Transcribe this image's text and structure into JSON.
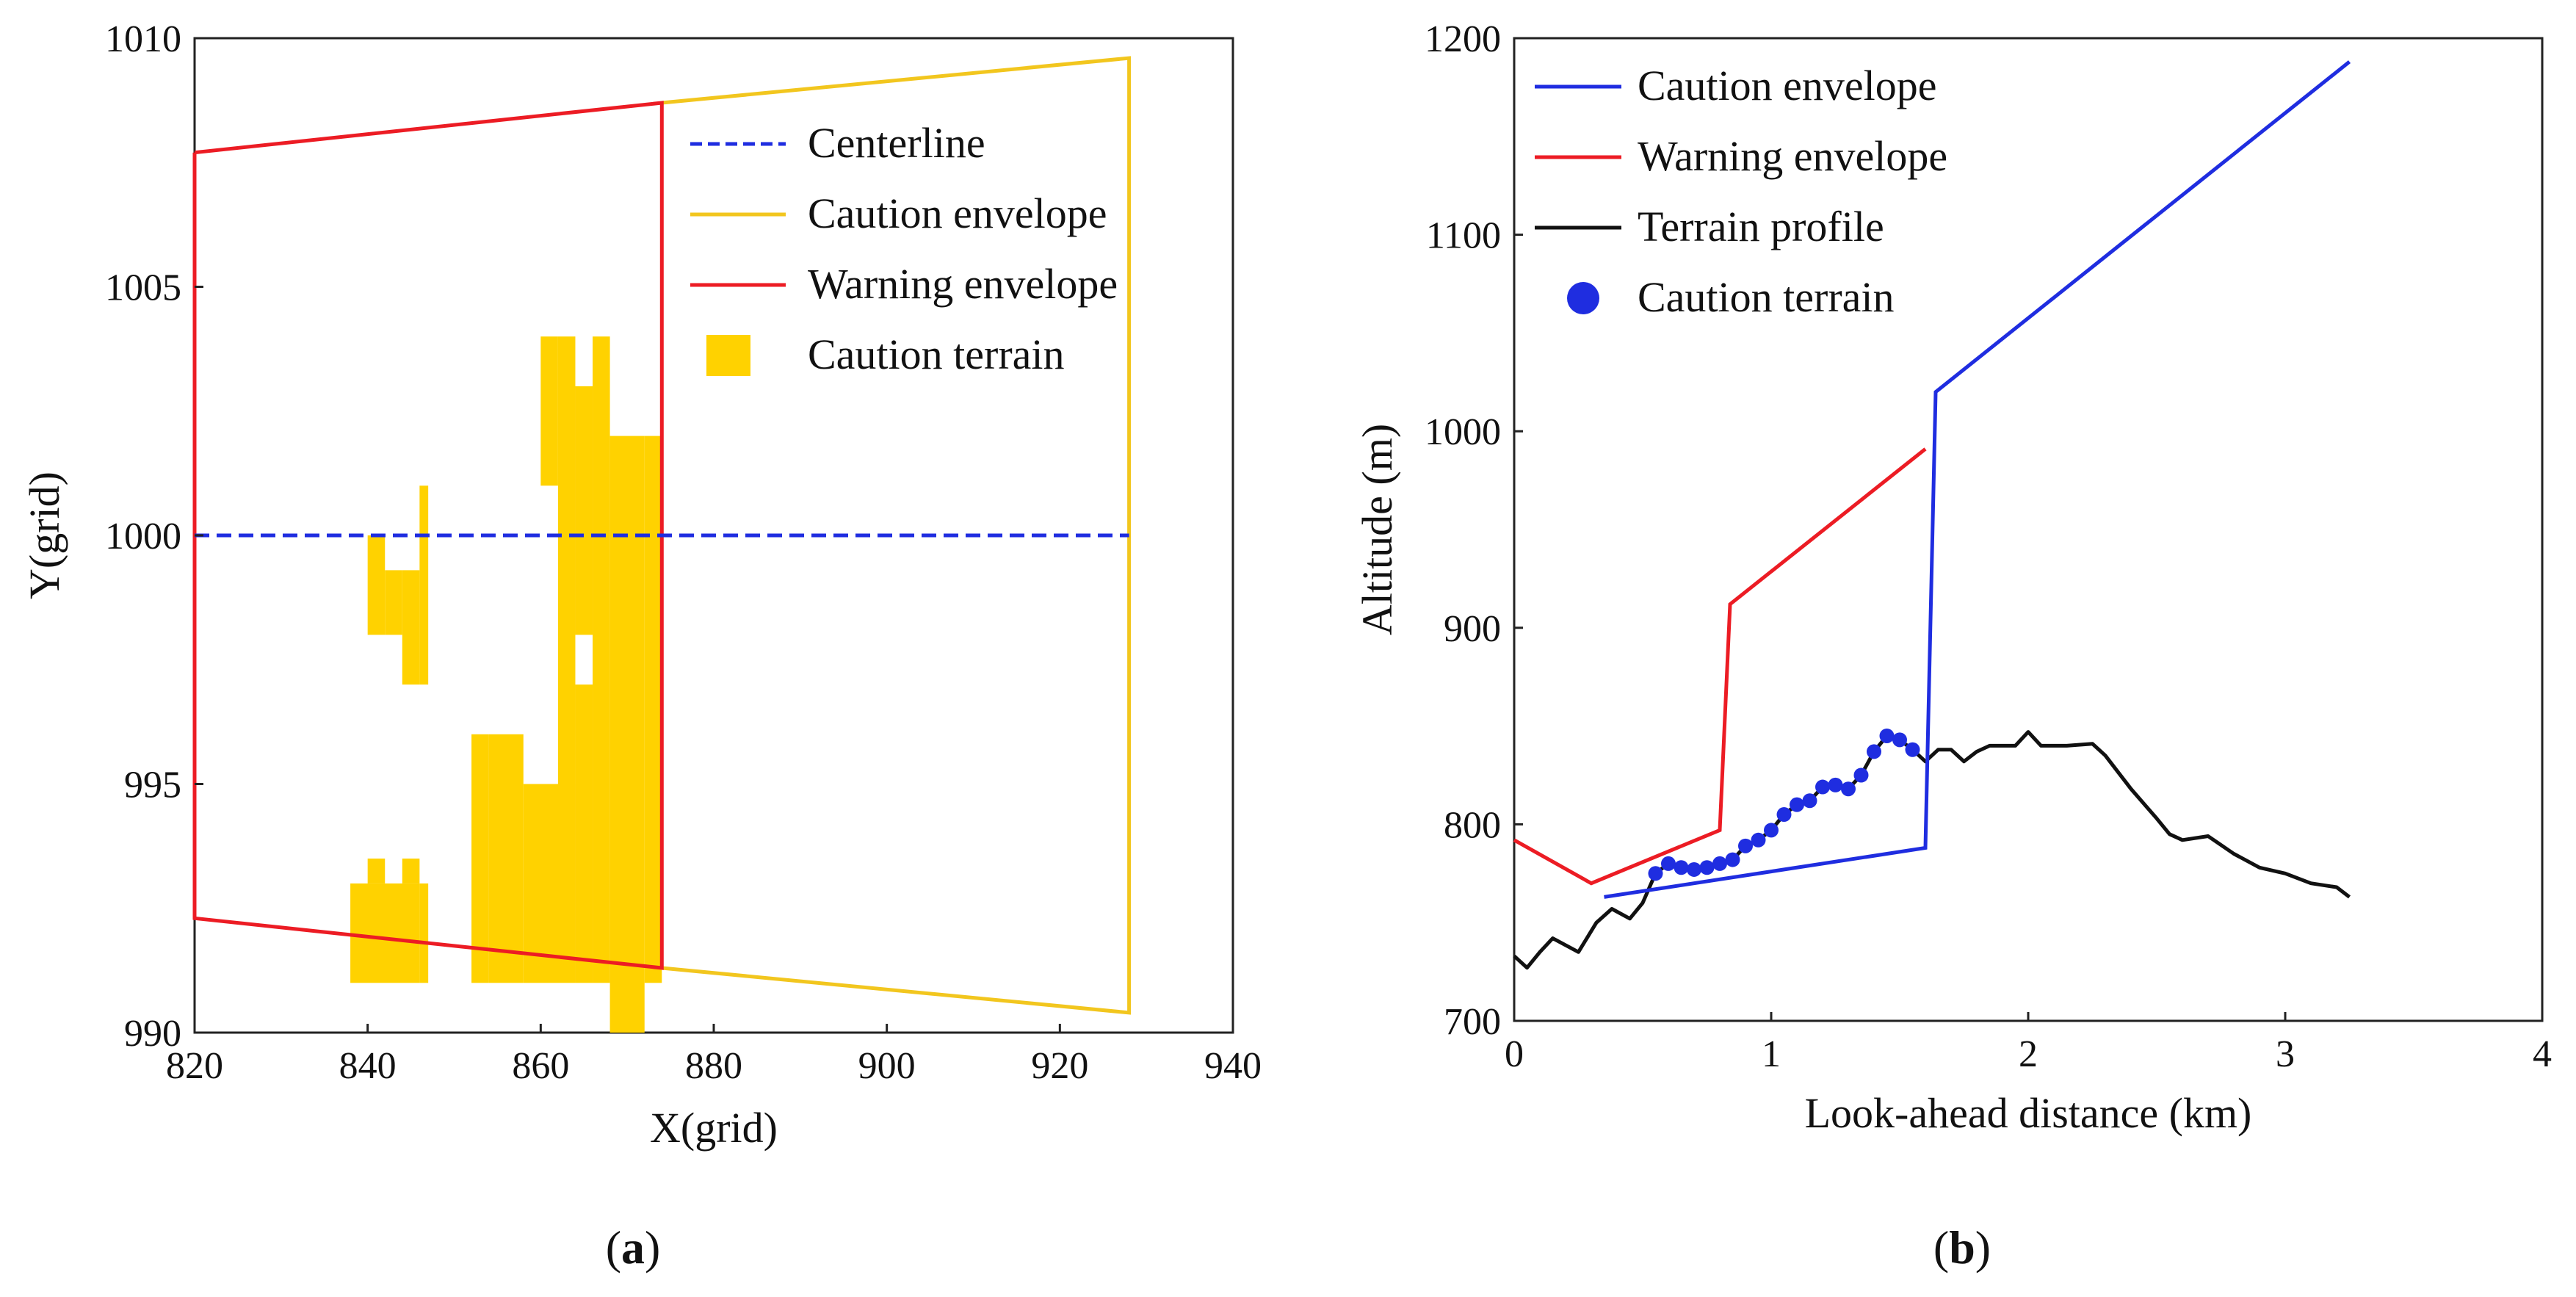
{
  "panels": {
    "a_label": "(a)",
    "a_label_bold": "a",
    "b_label_bold": "b"
  },
  "colors": {
    "centerline": "#1f2de0",
    "caution_envelope_a": "#f2c61e",
    "warning_envelope": "#ec1c24",
    "caution_terrain_a": "#ffd200",
    "caution_envelope_b": "#1f2de0",
    "terrain_profile": "#111111",
    "caution_terrain_b": "#1f2de0"
  },
  "chart_data": [
    {
      "id": "a",
      "type": "line",
      "title": "",
      "xlabel": "X(grid)",
      "ylabel": "Y(grid)",
      "xlim": [
        820,
        940
      ],
      "ylim": [
        990,
        1010
      ],
      "xticks": [
        820,
        840,
        860,
        880,
        900,
        920,
        940
      ],
      "yticks": [
        990,
        995,
        1000,
        1005,
        1010
      ],
      "grid": false,
      "legend_position": "top-right",
      "legend": [
        "Centerline",
        "Caution envelope",
        "Warning envelope",
        "Caution terrain"
      ],
      "series": [
        {
          "name": "Centerline",
          "style": "dashed",
          "points": [
            [
              820,
              1000
            ],
            [
              928,
              1000
            ]
          ]
        },
        {
          "name": "Caution envelope",
          "style": "solid",
          "points": [
            [
              874,
              1008.7
            ],
            [
              928,
              1009.6
            ],
            [
              928,
              990.4
            ],
            [
              874,
              991.3
            ]
          ]
        },
        {
          "name": "Warning envelope",
          "style": "solid",
          "points": [
            [
              820,
              1007.7
            ],
            [
              874,
              1008.7
            ],
            [
              874,
              991.3
            ],
            [
              820,
              992.3
            ],
            [
              820,
              1007.7
            ]
          ]
        },
        {
          "name": "Caution terrain",
          "style": "filled-cells",
          "cells": [
            [
              838,
              991,
              846,
              993
            ],
            [
              840,
              993,
              842,
              993.5
            ],
            [
              844,
              993,
              846,
              993.5
            ],
            [
              846,
              991,
              847,
              993
            ],
            [
              840,
              998,
              842,
              1000
            ],
            [
              842,
              998,
              844,
              999.3
            ],
            [
              844,
              997,
              846,
              999.3
            ],
            [
              846,
              997,
              847,
              1001
            ],
            [
              852,
              991,
              854,
              996
            ],
            [
              854,
              991,
              858,
              996
            ],
            [
              858,
              991,
              864,
              995
            ],
            [
              864,
              991,
              866,
              997
            ],
            [
              866,
              991,
              868,
              1004
            ],
            [
              862,
              995,
              864,
              1004
            ],
            [
              860,
              1001,
              862,
              1004
            ],
            [
              864,
              998,
              866,
              1003
            ],
            [
              868,
              990,
              872,
              1002
            ],
            [
              872,
              991,
              874,
              1002
            ]
          ]
        }
      ]
    },
    {
      "id": "b",
      "type": "line",
      "title": "",
      "xlabel": "Look-ahead distance (km)",
      "ylabel": "Altitude (m)",
      "xlim": [
        0,
        4
      ],
      "ylim": [
        700,
        1200
      ],
      "xticks": [
        0,
        1,
        2,
        3,
        4
      ],
      "yticks": [
        700,
        800,
        900,
        1000,
        1100,
        1200
      ],
      "grid": false,
      "legend_position": "top-left",
      "legend": [
        "Caution envelope",
        "Warning envelope",
        "Terrain profile",
        "Caution terrain"
      ],
      "series": [
        {
          "name": "Caution envelope",
          "points": [
            [
              0.35,
              763
            ],
            [
              1.6,
              788
            ],
            [
              1.64,
              1020
            ],
            [
              3.25,
              1188
            ]
          ]
        },
        {
          "name": "Warning envelope",
          "points": [
            [
              0,
              792
            ],
            [
              0.3,
              770
            ],
            [
              0.8,
              797
            ],
            [
              0.84,
              912
            ],
            [
              1.6,
              991
            ]
          ]
        },
        {
          "name": "Terrain profile",
          "points": [
            [
              0,
              733
            ],
            [
              0.05,
              727
            ],
            [
              0.1,
              735
            ],
            [
              0.15,
              742
            ],
            [
              0.25,
              735
            ],
            [
              0.32,
              750
            ],
            [
              0.38,
              757
            ],
            [
              0.45,
              752
            ],
            [
              0.5,
              760
            ],
            [
              0.55,
              775
            ],
            [
              0.6,
              780
            ],
            [
              0.65,
              778
            ],
            [
              0.7,
              777
            ],
            [
              0.75,
              778
            ],
            [
              0.8,
              780
            ],
            [
              0.85,
              782
            ],
            [
              0.9,
              789
            ],
            [
              0.95,
              792
            ],
            [
              1.0,
              797
            ],
            [
              1.05,
              805
            ],
            [
              1.1,
              810
            ],
            [
              1.15,
              812
            ],
            [
              1.2,
              819
            ],
            [
              1.25,
              820
            ],
            [
              1.3,
              818
            ],
            [
              1.35,
              825
            ],
            [
              1.4,
              837
            ],
            [
              1.45,
              845
            ],
            [
              1.5,
              843
            ],
            [
              1.55,
              838
            ],
            [
              1.6,
              832
            ],
            [
              1.65,
              838
            ],
            [
              1.7,
              838
            ],
            [
              1.75,
              832
            ],
            [
              1.8,
              837
            ],
            [
              1.85,
              840
            ],
            [
              1.95,
              840
            ],
            [
              2.0,
              847
            ],
            [
              2.05,
              840
            ],
            [
              2.15,
              840
            ],
            [
              2.25,
              841
            ],
            [
              2.3,
              835
            ],
            [
              2.4,
              818
            ],
            [
              2.5,
              803
            ],
            [
              2.55,
              795
            ],
            [
              2.6,
              792
            ],
            [
              2.7,
              794
            ],
            [
              2.8,
              785
            ],
            [
              2.9,
              778
            ],
            [
              3.0,
              775
            ],
            [
              3.1,
              770
            ],
            [
              3.2,
              768
            ],
            [
              3.25,
              763
            ]
          ]
        },
        {
          "name": "Caution terrain",
          "style": "markers",
          "points": [
            [
              0.55,
              775
            ],
            [
              0.6,
              780
            ],
            [
              0.65,
              778
            ],
            [
              0.7,
              777
            ],
            [
              0.75,
              778
            ],
            [
              0.8,
              780
            ],
            [
              0.85,
              782
            ],
            [
              0.9,
              789
            ],
            [
              0.95,
              792
            ],
            [
              1.0,
              797
            ],
            [
              1.05,
              805
            ],
            [
              1.1,
              810
            ],
            [
              1.15,
              812
            ],
            [
              1.2,
              819
            ],
            [
              1.25,
              820
            ],
            [
              1.3,
              818
            ],
            [
              1.35,
              825
            ],
            [
              1.4,
              837
            ],
            [
              1.45,
              845
            ],
            [
              1.5,
              843
            ],
            [
              1.55,
              838
            ]
          ]
        }
      ]
    }
  ]
}
